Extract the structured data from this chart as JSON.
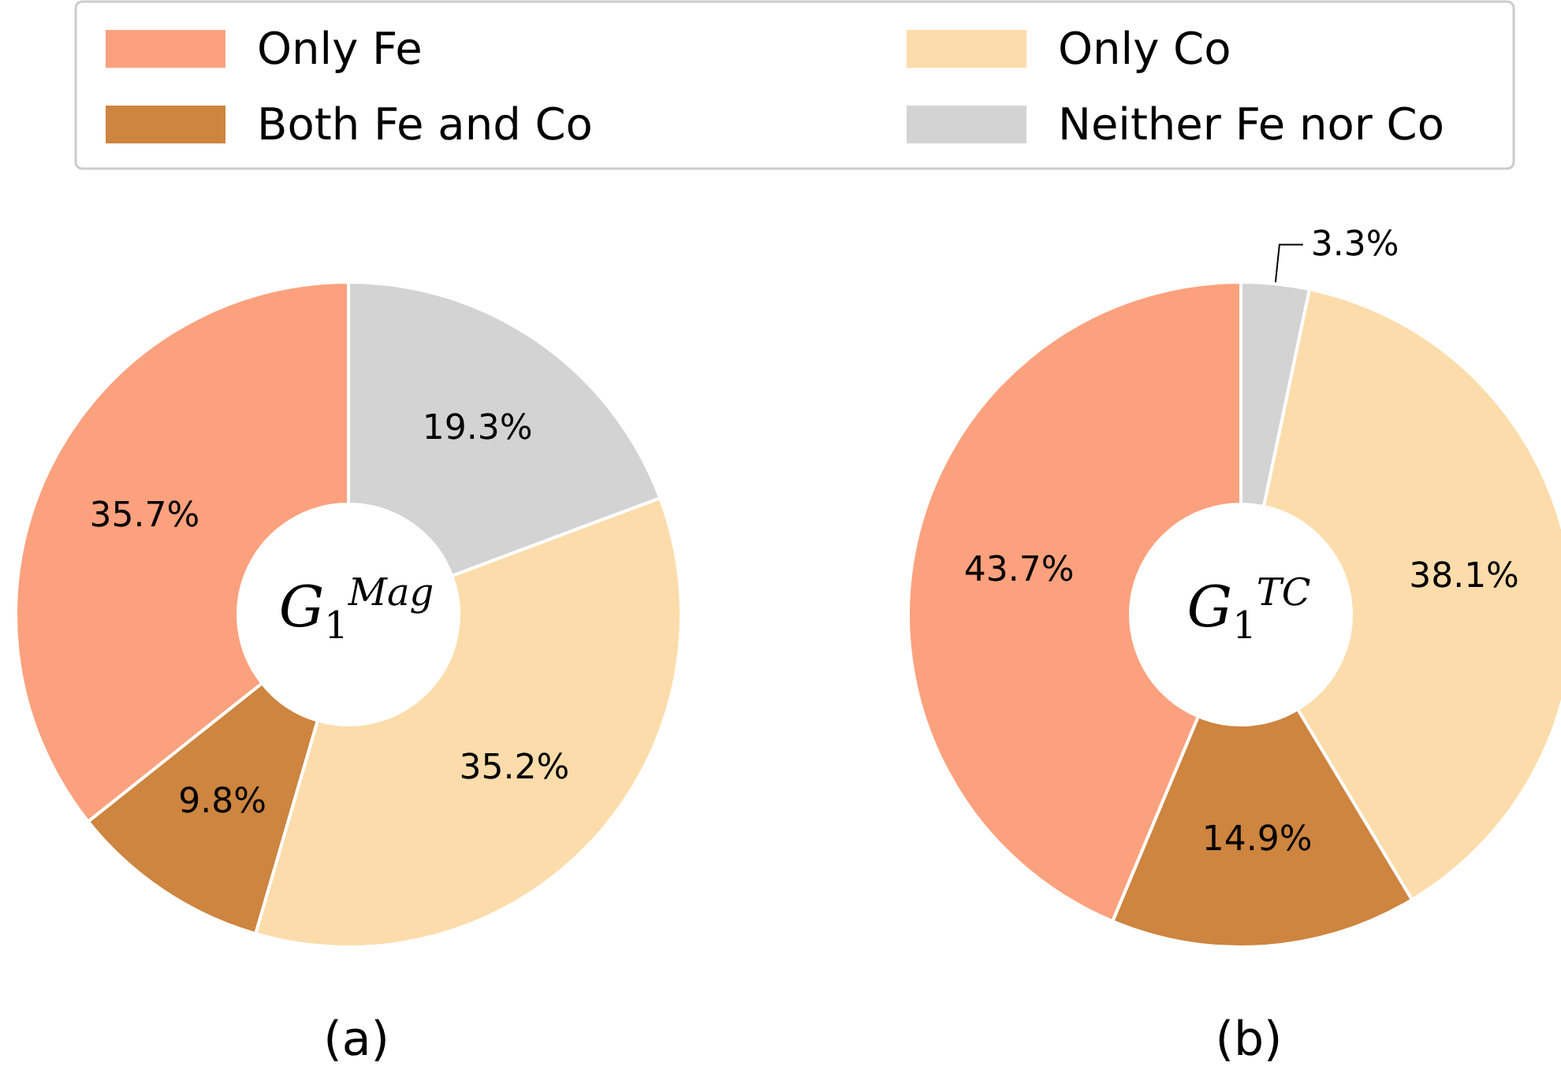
{
  "chart_data": [
    {
      "type": "donut",
      "title": "(a)",
      "subtitle": "G$_{1}$$^{Mag}$",
      "categories": [
        "Only Fe",
        "Both Fe and Co",
        "Only Co",
        "Neither Fe nor Co"
      ],
      "values": [
        35.7,
        9.8,
        35.2,
        19.3
      ],
      "value_labels": [
        "35.7%",
        "9.8%",
        "35.2%",
        "19.3%"
      ],
      "colors": [
        "#fca17d",
        "#cd853f",
        "#fddcab",
        "#d3d3d3"
      ],
      "legend": "top"
    },
    {
      "type": "donut",
      "title": "(b)",
      "subtitle": "G$_{1}$$^{TC}$",
      "categories": [
        null,
        null,
        null,
        null
      ],
      "values": [
        43.7,
        14.9,
        38.1,
        3.3
      ],
      "value_labels": [
        "43.7%",
        "14.9%",
        "38.1%",
        "3.3%"
      ],
      "colors": [
        "#fca17d",
        "#cd853f",
        "#fddcab",
        "#d3d3d3"
      ],
      "legend": false
    }
  ]
}
